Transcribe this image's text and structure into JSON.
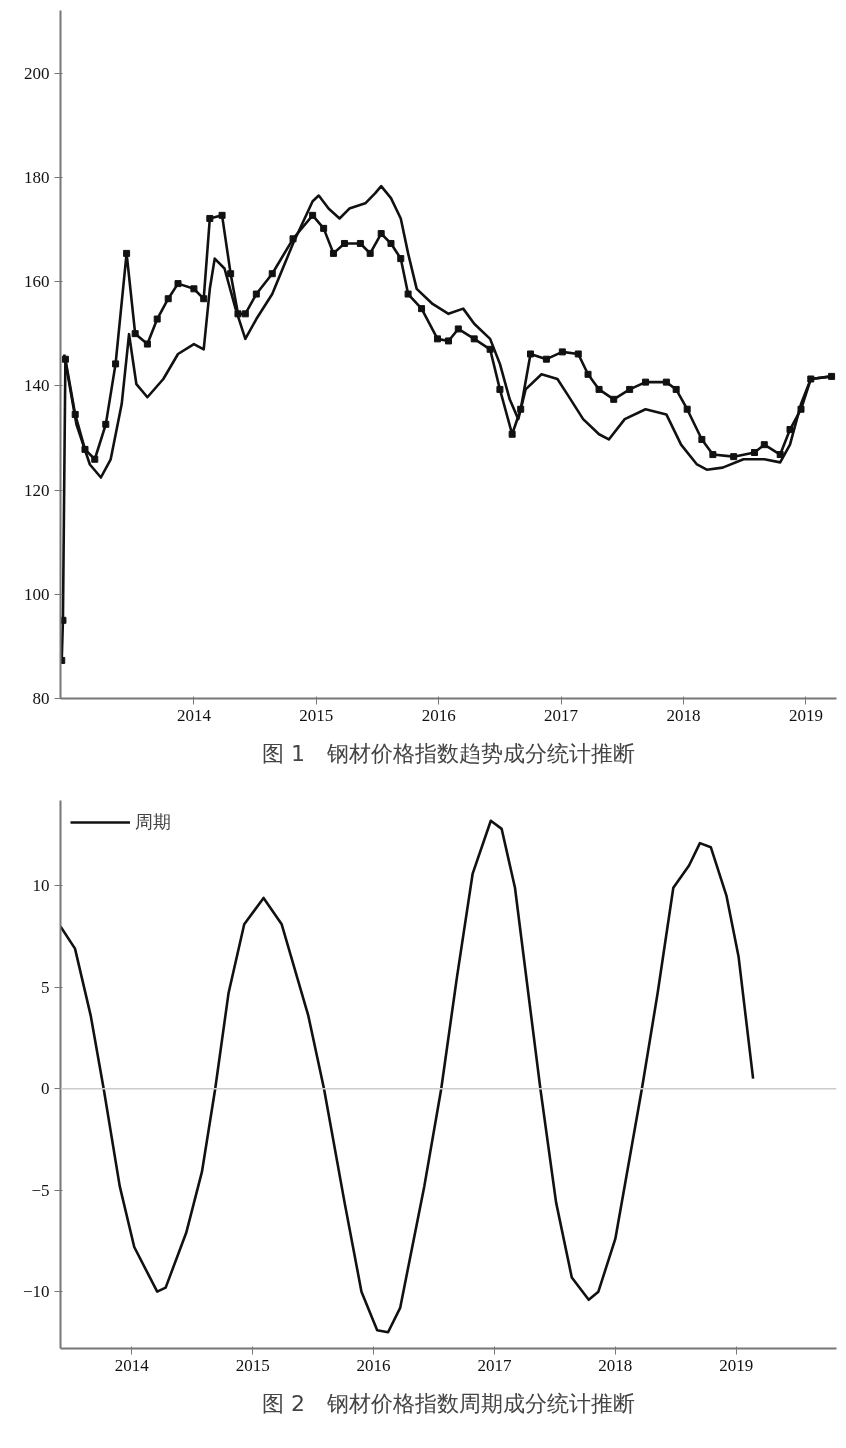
{
  "chart_data": [
    {
      "type": "line",
      "annotations": [
        "图 1　钢材价格指数趋势成分统计推断"
      ],
      "xlim": [
        2012.91,
        2019.25
      ],
      "ylim": [
        80,
        212
      ],
      "yticks": [
        80,
        100,
        120,
        140,
        160,
        180,
        200
      ],
      "xticks": [
        2014,
        2015,
        2016,
        2017,
        2018,
        2019
      ],
      "grid": false,
      "legend": false,
      "series": [
        {
          "color": "#111111",
          "marker": "none",
          "x": [
            2012.94,
            2013.04,
            2013.15,
            2013.24,
            2013.32,
            2013.41,
            2013.47,
            2013.53,
            2013.62,
            2013.75,
            2013.87,
            2014.0,
            2014.08,
            2014.13,
            2014.17,
            2014.25,
            2014.34,
            2014.42,
            2014.51,
            2014.64,
            2014.81,
            2014.97,
            2015.02,
            2015.1,
            2015.19,
            2015.27,
            2015.4,
            2015.48,
            2015.53,
            2015.61,
            2015.69,
            2015.75,
            2015.82,
            2015.95,
            2016.08,
            2016.2,
            2016.29,
            2016.42,
            2016.5,
            2016.58,
            2016.65,
            2016.71,
            2016.84,
            2016.97,
            2017.05,
            2017.18,
            2017.31,
            2017.39,
            2017.52,
            2017.69,
            2017.86,
            2017.98,
            2018.11,
            2018.19,
            2018.32,
            2018.49,
            2018.66,
            2018.79,
            2018.87,
            2018.96,
            2019.04,
            2019.21
          ],
          "values": [
            146,
            132.6,
            124.9,
            122.4,
            125.9,
            136.5,
            149.9,
            140.3,
            137.8,
            141.3,
            146.1,
            148,
            147,
            158.6,
            164.4,
            162.5,
            154.8,
            149,
            152.8,
            157.6,
            167.3,
            175.4,
            176.5,
            174,
            172.1,
            174,
            175,
            176.9,
            178.3,
            176,
            172.1,
            165.4,
            158.6,
            155.7,
            153.8,
            154.8,
            151.9,
            149,
            144.2,
            137.4,
            133.6,
            139.3,
            142.2,
            141.3,
            138.4,
            133.6,
            130.7,
            129.7,
            133.6,
            135.5,
            134.5,
            128.7,
            124.9,
            123.9,
            124.3,
            125.9,
            125.9,
            125.3,
            128.7,
            136.5,
            141.3,
            141.8
          ]
        },
        {
          "color": "#111111",
          "marker": "square",
          "x": [
            2012.92,
            2012.93,
            2012.95,
            2013.03,
            2013.11,
            2013.19,
            2013.28,
            2013.36,
            2013.45,
            2013.52,
            2013.62,
            2013.7,
            2013.79,
            2013.87,
            2014.0,
            2014.08,
            2014.13,
            2014.23,
            2014.3,
            2014.36,
            2014.42,
            2014.51,
            2014.64,
            2014.81,
            2014.97,
            2015.06,
            2015.14,
            2015.23,
            2015.36,
            2015.44,
            2015.53,
            2015.61,
            2015.69,
            2015.75,
            2015.86,
            2015.99,
            2016.08,
            2016.16,
            2016.29,
            2016.42,
            2016.5,
            2016.6,
            2016.67,
            2016.75,
            2016.88,
            2017.01,
            2017.14,
            2017.22,
            2017.31,
            2017.43,
            2017.56,
            2017.69,
            2017.86,
            2017.94,
            2018.03,
            2018.15,
            2018.24,
            2018.41,
            2018.58,
            2018.66,
            2018.79,
            2018.87,
            2018.96,
            2019.04,
            2019.21
          ],
          "values": [
            87.3,
            95,
            145.1,
            134.5,
            127.8,
            125.9,
            132.6,
            144.2,
            165.4,
            150,
            148,
            152.8,
            156.7,
            159.6,
            158.6,
            156.7,
            172.1,
            172.7,
            161.5,
            153.8,
            153.8,
            157.6,
            161.5,
            168.2,
            172.7,
            170.2,
            165.4,
            167.3,
            167.3,
            165.4,
            169.2,
            167.3,
            164.4,
            157.6,
            154.8,
            149,
            148.6,
            150.9,
            149,
            147,
            139.3,
            130.7,
            135.5,
            146.1,
            145.1,
            146.5,
            146.1,
            142.2,
            139.3,
            137.4,
            139.3,
            140.7,
            140.7,
            139.3,
            135.5,
            129.7,
            126.8,
            126.4,
            127.2,
            128.7,
            126.8,
            131.6,
            135.5,
            141.3,
            141.8
          ]
        }
      ]
    },
    {
      "type": "line",
      "annotations": [
        "图 2　钢材价格指数周期成分统计推断"
      ],
      "xlim": [
        2013.41,
        2019.83
      ],
      "ylim": [
        -12.8,
        14.2
      ],
      "yticks": [
        -10,
        -5,
        0,
        5,
        10
      ],
      "xticks": [
        2014,
        2015,
        2016,
        2017,
        2018,
        2019
      ],
      "grid": false,
      "legend": "top left",
      "ref_lines": [
        {
          "axis": "y",
          "value": 0,
          "color": "#cccccc"
        }
      ],
      "series": [
        {
          "name": "周期",
          "color": "#111111",
          "marker": "none",
          "x": [
            2013.41,
            2013.53,
            2013.66,
            2013.77,
            2013.9,
            2014.02,
            2014.21,
            2014.28,
            2014.45,
            2014.58,
            2014.69,
            2014.8,
            2014.93,
            2015.09,
            2015.24,
            2015.46,
            2015.59,
            2015.76,
            2015.9,
            2016.03,
            2016.12,
            2016.22,
            2016.42,
            2016.56,
            2016.69,
            2016.82,
            2016.97,
            2017.06,
            2017.17,
            2017.38,
            2017.51,
            2017.64,
            2017.78,
            2017.86,
            2018.0,
            2018.22,
            2018.35,
            2018.48,
            2018.61,
            2018.7,
            2018.79,
            2018.92,
            2019.02,
            2019.14
          ],
          "values": [
            8.0,
            6.9,
            3.6,
            -0.1,
            -4.8,
            -7.8,
            -10.0,
            -9.8,
            -7.1,
            -4.1,
            0,
            4.7,
            8.1,
            9.4,
            8.1,
            3.6,
            0,
            -5.6,
            -10,
            -11.9,
            -12.0,
            -10.8,
            -4.8,
            0,
            5.5,
            10.6,
            13.2,
            12.8,
            9.9,
            0,
            -5.6,
            -9.3,
            -10.4,
            -10,
            -7.4,
            0,
            4.7,
            9.9,
            11.0,
            12.1,
            11.9,
            9.5,
            6.5,
            0.5
          ]
        }
      ]
    }
  ]
}
